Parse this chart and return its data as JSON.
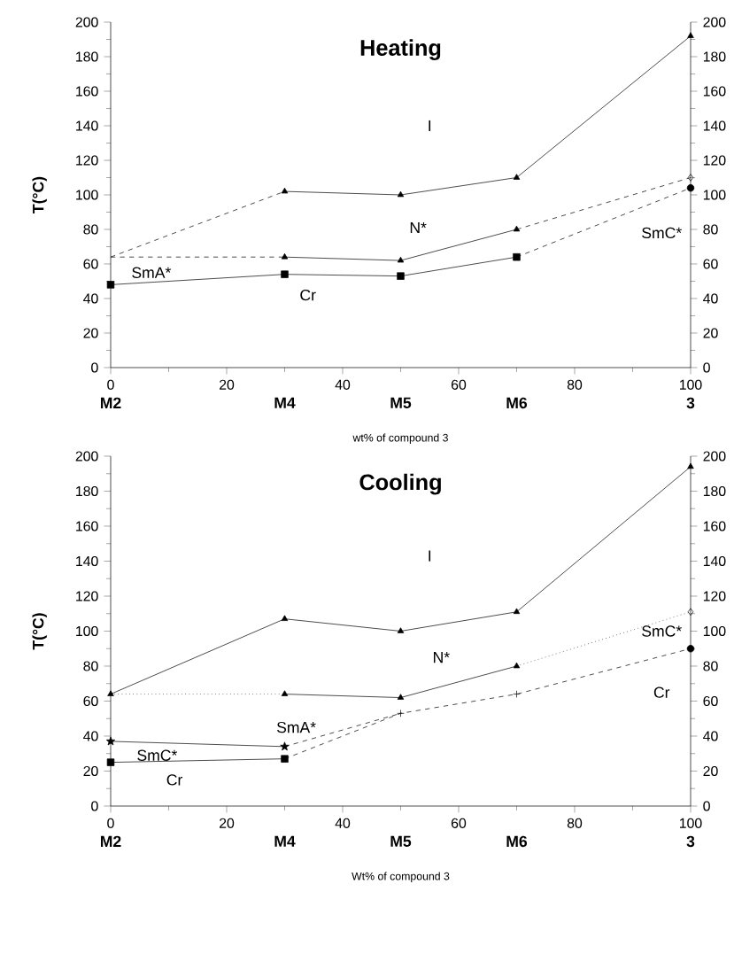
{
  "chart_data": [
    {
      "type": "line",
      "title": "Heating",
      "xlabel": "wt% of compound 3",
      "ylabel": "T(°C)",
      "xlim": [
        0,
        100
      ],
      "xticks": [
        0,
        20,
        40,
        60,
        80,
        100
      ],
      "ylim": [
        0,
        200
      ],
      "yticks": [
        0,
        20,
        40,
        60,
        80,
        100,
        120,
        140,
        160,
        180,
        200
      ],
      "y2lim": [
        0,
        200
      ],
      "y2ticks": [
        0,
        20,
        40,
        60,
        80,
        100,
        120,
        140,
        160,
        180,
        200
      ],
      "grid": false,
      "series": [
        {
          "color": "#000000",
          "x": [
            30,
            50,
            70,
            100
          ],
          "values": [
            102,
            100,
            110,
            192
          ],
          "marker": "triangle",
          "line_style": "solid"
        },
        {
          "color": "#000000",
          "x": [
            0,
            30
          ],
          "values": [
            64,
            102
          ],
          "line_style": "dashed"
        },
        {
          "color": "#000000",
          "x": [
            30,
            50,
            70
          ],
          "values": [
            64,
            62,
            80
          ],
          "marker": "triangle",
          "line_style": "solid"
        },
        {
          "color": "#000000",
          "x": [
            0,
            30
          ],
          "values": [
            64,
            64
          ],
          "line_style": "dashed"
        },
        {
          "color": "#000000",
          "x": [
            70,
            100
          ],
          "values": [
            80,
            110
          ],
          "line_style": "dashed"
        },
        {
          "color": "#000000",
          "x": [
            0,
            30,
            50,
            70
          ],
          "values": [
            48,
            54,
            53,
            64
          ],
          "marker": "square",
          "line_style": "solid"
        },
        {
          "color": "#000000",
          "x": [
            70,
            100
          ],
          "values": [
            64,
            104
          ],
          "line_style": "dashed"
        },
        {
          "type": "scatter",
          "color": "#000000",
          "x": [
            100
          ],
          "values": [
            110
          ],
          "marker": "diamond"
        },
        {
          "type": "scatter",
          "color": "#000000",
          "x": [
            100
          ],
          "values": [
            104
          ],
          "marker": "circle"
        }
      ],
      "annotations": [
        "I",
        "N*",
        "SmA*",
        "Cr",
        "SmC*",
        "M2",
        "M4",
        "M5",
        "M6",
        "3"
      ]
    },
    {
      "type": "line",
      "title": "Cooling",
      "xlabel": "Wt% of compound 3",
      "ylabel": "T(°C)",
      "xlim": [
        0,
        100
      ],
      "xticks": [
        0,
        20,
        40,
        60,
        80,
        100
      ],
      "ylim": [
        0,
        200
      ],
      "yticks": [
        0,
        20,
        40,
        60,
        80,
        100,
        120,
        140,
        160,
        180,
        200
      ],
      "y2lim": [
        0,
        200
      ],
      "y2ticks": [
        0,
        20,
        40,
        60,
        80,
        100,
        120,
        140,
        160,
        180,
        200
      ],
      "grid": false,
      "series": [
        {
          "color": "#000000",
          "x": [
            0,
            30,
            50,
            70,
            100
          ],
          "values": [
            64,
            107,
            100,
            111,
            194
          ],
          "marker": "triangle",
          "line_style": "solid"
        },
        {
          "color": "#000000",
          "x": [
            0,
            30
          ],
          "values": [
            64,
            64
          ],
          "line_style": "dotted"
        },
        {
          "color": "#000000",
          "x": [
            30,
            50,
            70
          ],
          "values": [
            64,
            62,
            80
          ],
          "marker": "triangle",
          "line_style": "solid"
        },
        {
          "color": "#000000",
          "x": [
            70,
            100
          ],
          "values": [
            80,
            111
          ],
          "line_style": "dotted"
        },
        {
          "color": "#000000",
          "x": [
            0,
            30
          ],
          "values": [
            37,
            34
          ],
          "marker": "star",
          "line_style": "solid"
        },
        {
          "color": "#000000",
          "x": [
            30,
            50
          ],
          "values": [
            34,
            53
          ],
          "line_style": "dashed"
        },
        {
          "color": "#000000",
          "x": [
            0,
            30
          ],
          "values": [
            25,
            27
          ],
          "marker": "square",
          "line_style": "solid"
        },
        {
          "color": "#000000",
          "x": [
            30,
            50,
            70,
            100
          ],
          "values": [
            27,
            53,
            64,
            90
          ],
          "line_style": "dashed"
        },
        {
          "type": "scatter",
          "color": "#000000",
          "x": [
            50,
            70
          ],
          "values": [
            53,
            64
          ],
          "marker": "cross"
        },
        {
          "type": "scatter",
          "color": "#000000",
          "x": [
            100
          ],
          "values": [
            111
          ],
          "marker": "diamond"
        },
        {
          "type": "scatter",
          "color": "#000000",
          "x": [
            100
          ],
          "values": [
            90
          ],
          "marker": "circle"
        }
      ],
      "annotations": [
        "I",
        "N*",
        "SmA*",
        "SmC*",
        "Cr",
        "SmC*",
        "Cr",
        "M2",
        "M4",
        "M5",
        "M6",
        "3"
      ]
    }
  ]
}
